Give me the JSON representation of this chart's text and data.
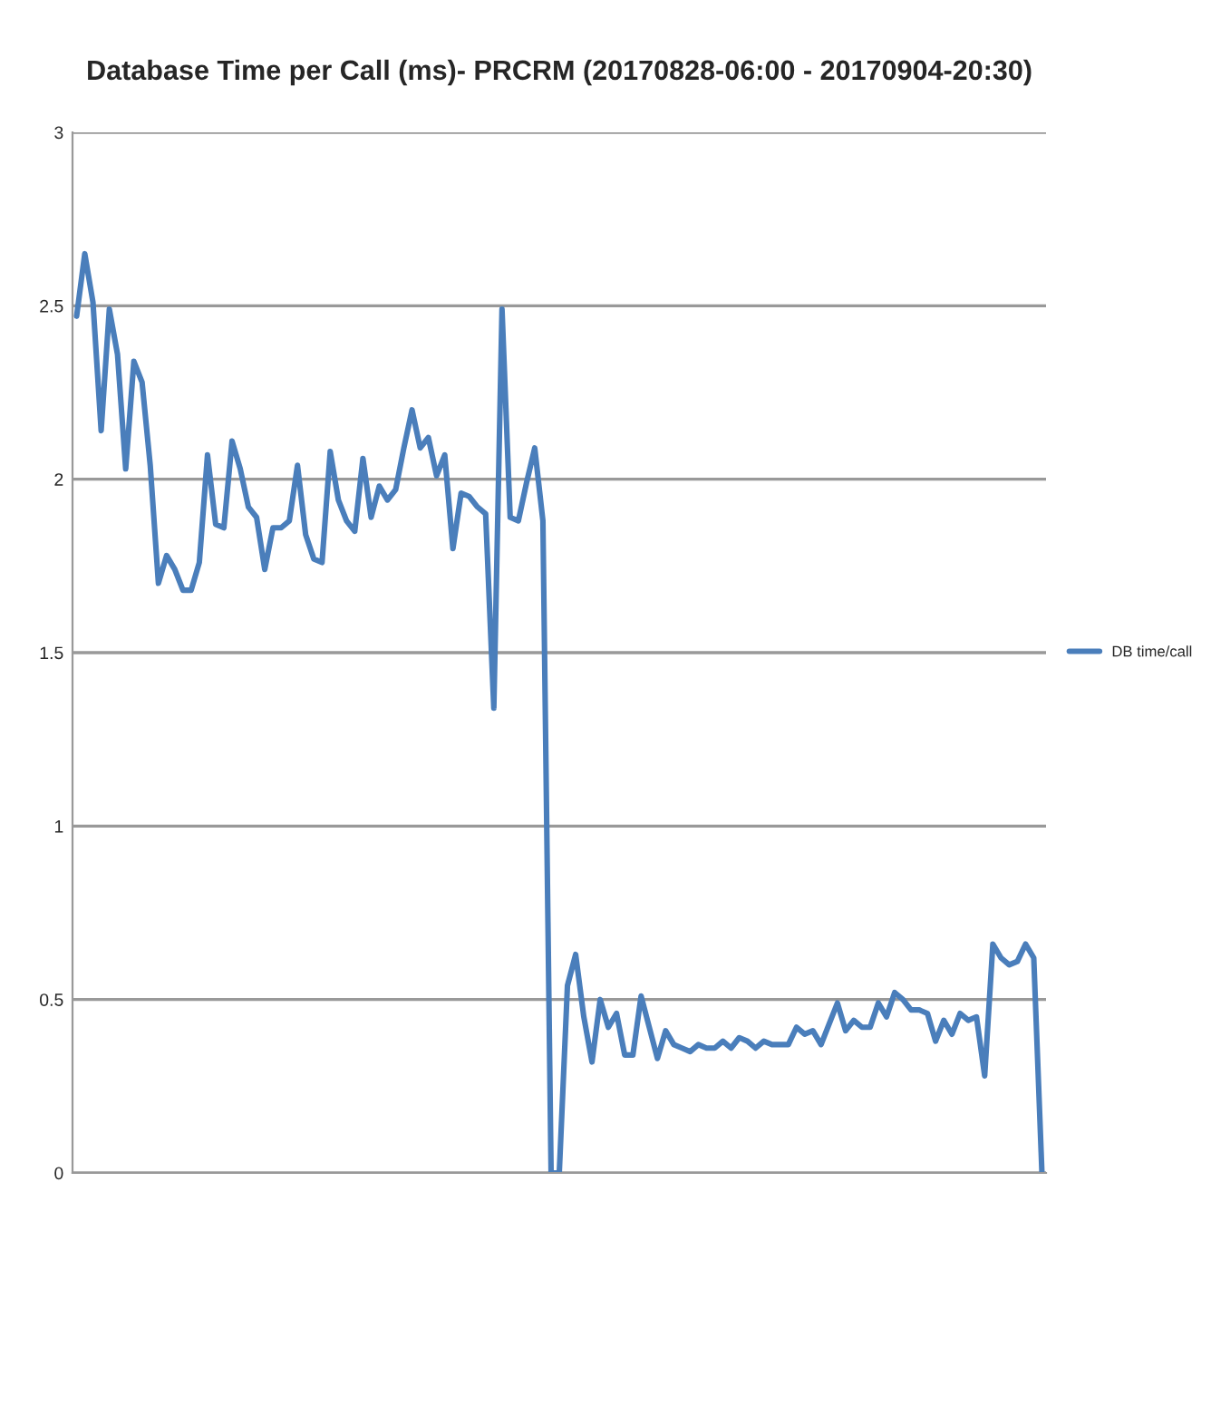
{
  "chart_data": {
    "type": "line",
    "title": "Database Time per Call (ms)- PRCRM (20170828-06:00 - 20170904-20:30)",
    "categories": [
      null,
      null,
      null,
      null,
      null,
      null,
      null,
      null,
      null,
      null,
      null,
      null,
      null,
      null,
      null,
      null,
      null,
      null,
      null,
      null,
      null,
      null,
      null,
      null,
      null,
      null,
      null,
      null,
      null,
      null,
      null,
      null,
      null,
      null,
      null,
      null,
      null,
      null,
      null,
      null,
      null,
      null,
      null,
      null,
      null,
      null,
      null,
      null,
      null,
      null,
      null,
      null,
      null,
      null,
      null,
      null,
      null,
      null,
      null,
      null,
      null,
      null,
      null,
      null,
      null,
      null,
      null,
      null,
      null,
      null,
      null,
      null,
      null,
      null,
      null,
      null,
      null,
      null,
      null,
      null,
      null,
      null,
      null,
      null,
      null,
      null,
      null,
      null,
      null,
      null,
      null,
      null,
      null,
      null,
      null,
      null,
      null,
      null,
      null,
      null,
      null,
      null,
      null,
      null,
      null,
      null,
      null,
      null,
      null,
      null,
      null,
      null,
      null,
      null,
      null,
      null,
      null,
      null,
      null
    ],
    "series": [
      {
        "name": "DB time/call",
        "color": "#4a7ebb",
        "values": [
          2.47,
          2.65,
          2.51,
          2.14,
          2.49,
          2.36,
          2.03,
          2.34,
          2.28,
          2.04,
          1.7,
          1.78,
          1.74,
          1.68,
          1.68,
          1.76,
          2.07,
          1.87,
          1.86,
          2.11,
          2.03,
          1.92,
          1.89,
          1.74,
          1.86,
          1.86,
          1.88,
          2.04,
          1.84,
          1.77,
          1.76,
          2.08,
          1.94,
          1.88,
          1.85,
          2.06,
          1.89,
          1.98,
          1.94,
          1.97,
          2.09,
          2.2,
          2.09,
          2.12,
          2.01,
          2.07,
          1.8,
          1.96,
          1.95,
          1.92,
          1.9,
          1.34,
          2.49,
          1.89,
          1.88,
          1.99,
          2.09,
          1.88,
          0,
          0,
          0.54,
          0.63,
          0.45,
          0.32,
          0.5,
          0.42,
          0.46,
          0.34,
          0.34,
          0.51,
          0.42,
          0.33,
          0.41,
          0.37,
          0.36,
          0.35,
          0.37,
          0.36,
          0.36,
          0.38,
          0.36,
          0.39,
          0.38,
          0.36,
          0.38,
          0.37,
          0.37,
          0.37,
          0.42,
          0.4,
          0.41,
          0.37,
          0.43,
          0.49,
          0.41,
          0.44,
          0.42,
          0.42,
          0.49,
          0.45,
          0.52,
          0.5,
          0.47,
          0.47,
          0.46,
          0.38,
          0.44,
          0.4,
          0.46,
          0.44,
          0.45,
          0.28,
          0.66,
          0.62,
          0.6,
          0.61,
          0.66,
          0.62,
          0
        ]
      }
    ],
    "ylim": [
      0,
      3
    ],
    "yticks": [
      0,
      0.5,
      1,
      1.5,
      2,
      2.5,
      3
    ],
    "grid": "y",
    "legend": "right",
    "marker": "none",
    "line_style": "solid"
  }
}
